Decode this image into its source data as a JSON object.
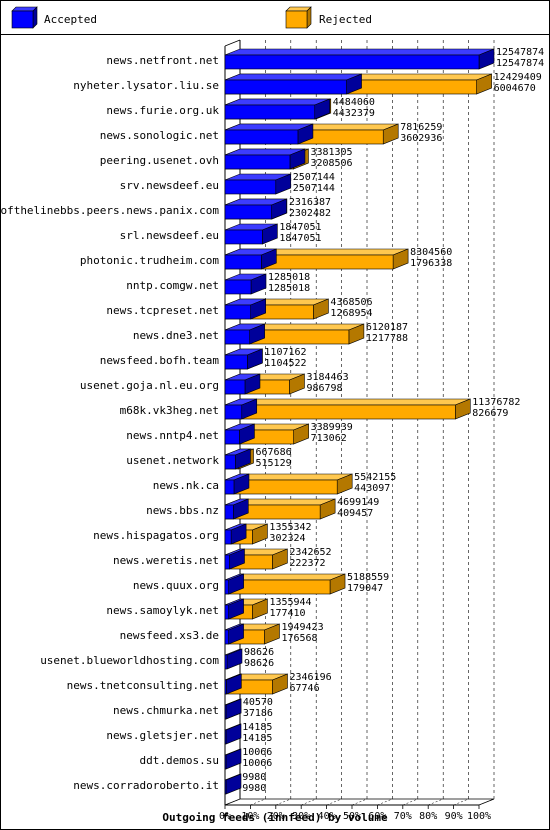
{
  "chart_data": {
    "type": "bar",
    "orientation": "horizontal",
    "stacked": true,
    "style": "3d",
    "title": "Outgoing feeds (innfeed) by volume",
    "legend": {
      "placement": "top",
      "items": [
        {
          "name": "Accepted",
          "color": "#0000ff"
        },
        {
          "name": "Rejected",
          "color": "#ffaa00"
        }
      ]
    },
    "x_axis": {
      "range": [
        0,
        100
      ],
      "unit": "%",
      "ticks": [
        "0%",
        "10%",
        "20%",
        "30%",
        "40%",
        "50%",
        "60%",
        "70%",
        "80%",
        "90%",
        "100%"
      ],
      "gridlines": true
    },
    "categories": [
      "news.netfront.net",
      "nyheter.lysator.liu.se",
      "news.furie.org.uk",
      "news.sonologic.net",
      "peering.usenet.ovh",
      "srv.newsdeef.eu",
      "endofthelinebbs.peers.news.panix.com",
      "srl.newsdeef.eu",
      "photonic.trudheim.com",
      "nntp.comgw.net",
      "news.tcpreset.net",
      "news.dne3.net",
      "newsfeed.bofh.team",
      "usenet.goja.nl.eu.org",
      "m68k.vk3heg.net",
      "news.nntp4.net",
      "usenet.network",
      "news.nk.ca",
      "news.bbs.nz",
      "news.hispagatos.org",
      "news.weretis.net",
      "news.quux.org",
      "news.samoylyk.net",
      "newsfeed.xs3.de",
      "usenet.blueworldhosting.com",
      "news.tnetconsulting.net",
      "news.chmurka.net",
      "news.gletsjer.net",
      "ddt.demos.su",
      "news.corradoroberto.it"
    ],
    "offered": [
      12547874,
      12429409,
      4484060,
      7816259,
      3381305,
      2507144,
      2316387,
      1847051,
      8304560,
      1285018,
      4368506,
      6120187,
      1107162,
      3184463,
      11376782,
      3389939,
      667686,
      5542155,
      4699149,
      1355342,
      2342652,
      5188559,
      1355944,
      1949423,
      98626,
      2346196,
      40570,
      14185,
      10066,
      9980
    ],
    "accepted": [
      12547874,
      6004670,
      4432379,
      3602936,
      3208506,
      2507144,
      2302482,
      1847051,
      1796338,
      1285018,
      1268954,
      1217788,
      1104522,
      986798,
      826679,
      713062,
      515129,
      443097,
      409457,
      302324,
      222372,
      179047,
      177410,
      176568,
      98626,
      67746,
      37186,
      14185,
      10066,
      9980
    ],
    "offered_labels": [
      "12547874",
      "12429409",
      "4484060",
      "7816259",
      "3381305",
      "2507144",
      "2316387",
      "1847051",
      "8304560",
      "1285018",
      "4368506",
      "6120187",
      "1107162",
      "3184463",
      "11376782",
      "3389939",
      "667686",
      "5542155",
      "4699149",
      "1355342",
      "2342652",
      "5188559",
      "1355944",
      "1949423",
      "98626",
      "2346196",
      "40570",
      "14185",
      "10066",
      "9980"
    ],
    "accepted_labels": [
      "12547874",
      "6004670",
      "4432379",
      "3602936",
      "3208506",
      "2507144",
      "2302482",
      "1847051",
      "1796338",
      "1285018",
      "1268954",
      "1217788",
      "1104522",
      "986798",
      "826679",
      "713062",
      "515129",
      "443097",
      "409457",
      "302324",
      "222372",
      "179047",
      "177410",
      "176568",
      "98626",
      "67746",
      "37186",
      "14185",
      "10066",
      "9980"
    ]
  }
}
